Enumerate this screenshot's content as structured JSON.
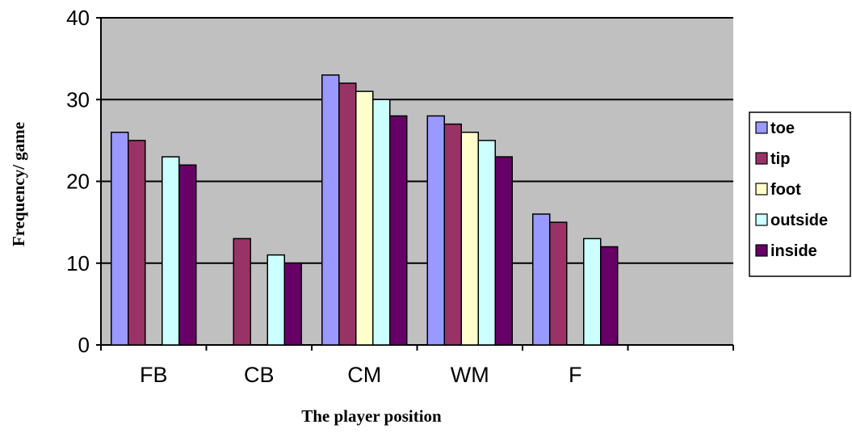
{
  "chart_data": {
    "type": "bar",
    "title": "",
    "xlabel": "The player position",
    "ylabel": "Frequency/ game",
    "categories": [
      "FB",
      "CB",
      "CM",
      "WM",
      "F",
      ""
    ],
    "ylim": [
      0,
      40
    ],
    "yticks": [
      "0",
      "10",
      "20",
      "30",
      "40"
    ],
    "grid": true,
    "legend_position": "right",
    "series": [
      {
        "name": "toe",
        "color": "#9999ff",
        "values": [
          26,
          null,
          33,
          28,
          16,
          null
        ]
      },
      {
        "name": "tip",
        "color": "#993366",
        "values": [
          25,
          13,
          32,
          27,
          15,
          null
        ]
      },
      {
        "name": "foot",
        "color": "#ffffcc",
        "values": [
          null,
          null,
          31,
          26,
          null,
          null
        ]
      },
      {
        "name": "outside",
        "color": "#ccffff",
        "values": [
          23,
          11,
          30,
          25,
          13,
          null
        ]
      },
      {
        "name": "inside",
        "color": "#660066",
        "values": [
          22,
          10,
          28,
          23,
          12,
          null
        ]
      }
    ],
    "plot_background": "#c0c0c0"
  }
}
